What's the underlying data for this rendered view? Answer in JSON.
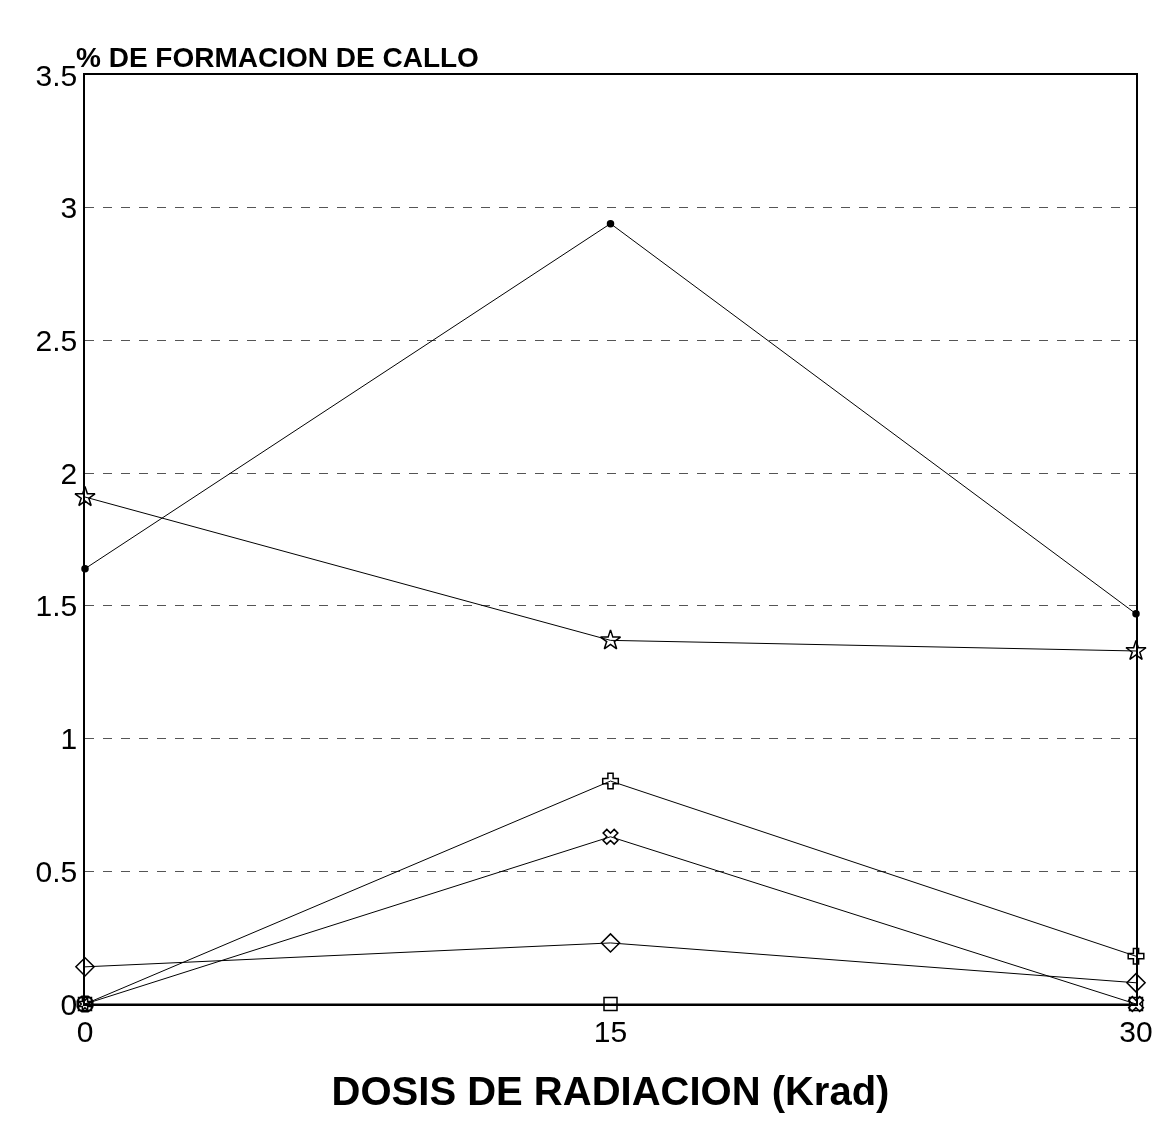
{
  "chart_data": {
    "type": "line",
    "ylabel": "% DE FORMACION DE CALLO",
    "xlabel": "DOSIS DE RADIACION (Krad)",
    "x": [
      0,
      15,
      30
    ],
    "xlim": [
      0,
      30
    ],
    "xticks": [
      0,
      15,
      30
    ],
    "ylim": [
      0,
      3.5
    ],
    "yticks": [
      0,
      0.5,
      1,
      1.5,
      2,
      2.5,
      3,
      3.5
    ],
    "grid": "y",
    "legend": false,
    "series": [
      {
        "color": "#000000",
        "marker": "circle",
        "values": [
          1.64,
          2.94,
          1.47
        ]
      },
      {
        "color": "#000000",
        "marker": "star",
        "values": [
          1.91,
          1.37,
          1.33
        ]
      },
      {
        "color": "#000000",
        "marker": "cross",
        "values": [
          0,
          0.84,
          0.18
        ]
      },
      {
        "color": "#000000",
        "marker": "x",
        "values": [
          0,
          0.63,
          0
        ]
      },
      {
        "color": "#000000",
        "marker": "diamond",
        "values": [
          0.14,
          0.23,
          0.08
        ]
      },
      {
        "color": "#000000",
        "marker": "square",
        "values": [
          0,
          0,
          0
        ]
      }
    ]
  }
}
